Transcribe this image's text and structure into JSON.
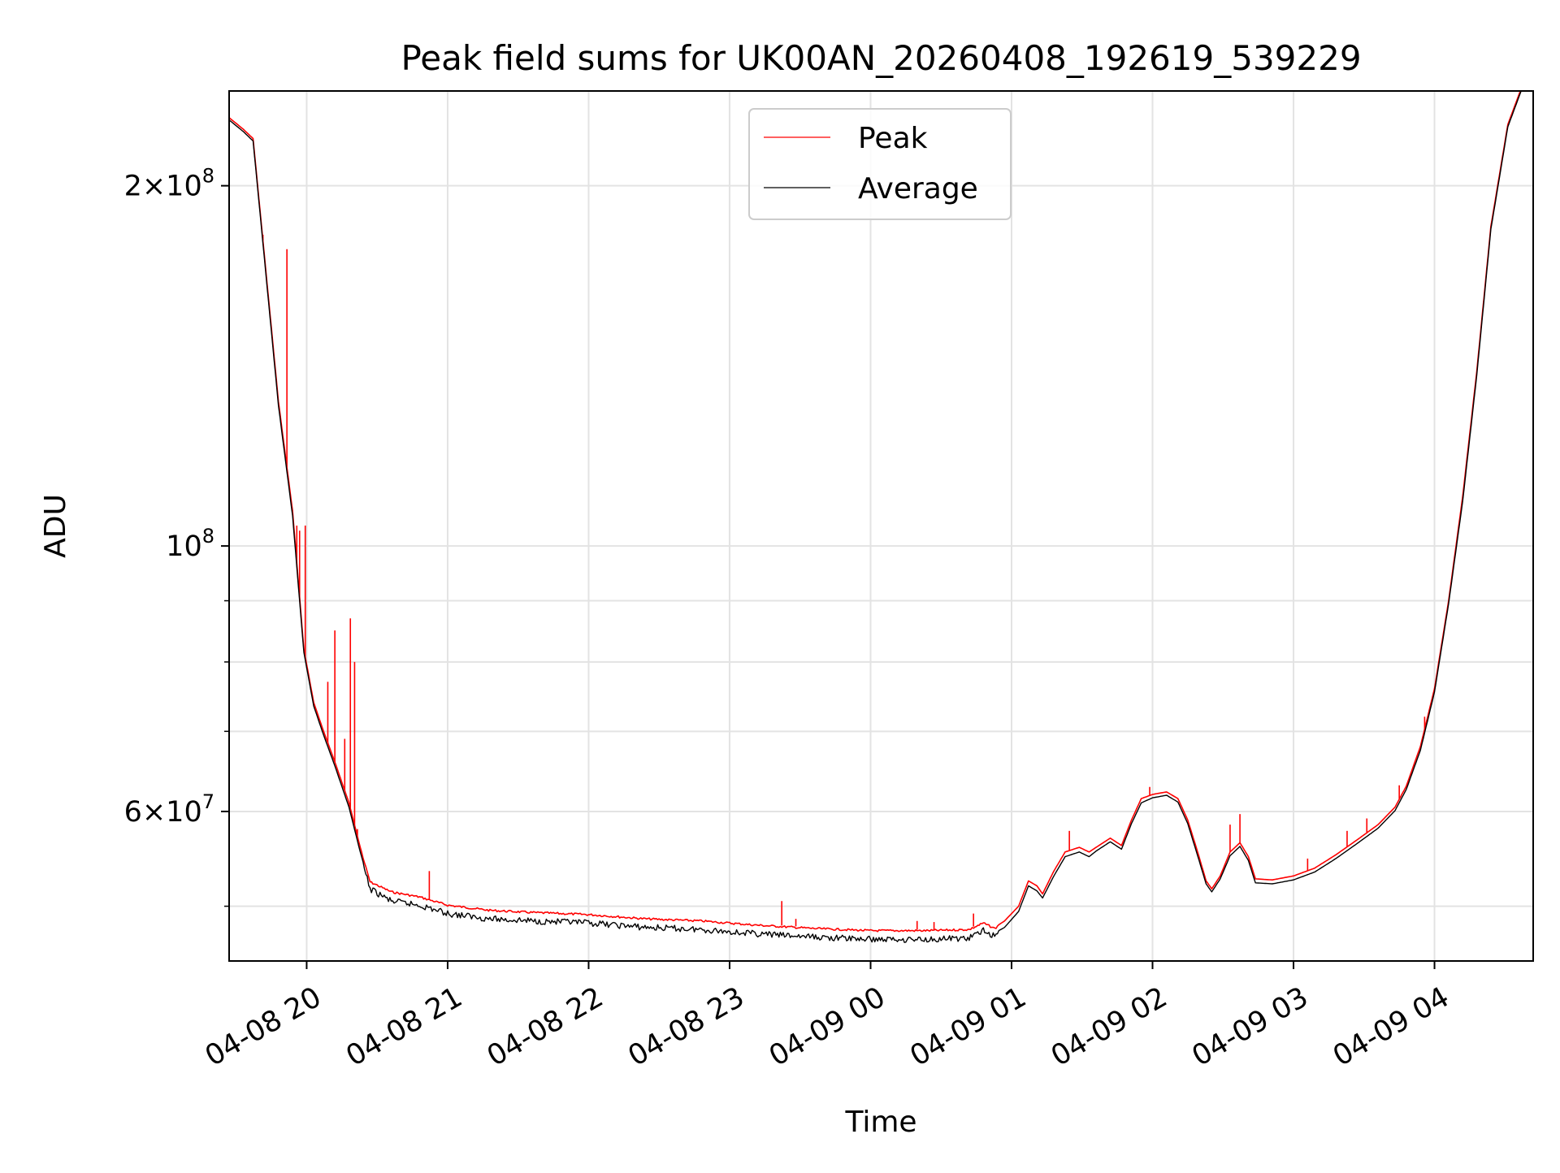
{
  "chart_data": {
    "type": "line",
    "title": "Peak field sums for UK00AN_20260408_192619_539229",
    "xlabel": "Time",
    "ylabel": "ADU",
    "yscale": "log",
    "grid": true,
    "legend_position": "top-center",
    "xlim_hours": [
      -0.55,
      8.7
    ],
    "ylim": [
      45000000,
      240000000
    ],
    "x_units": "hours since 04-08 20:00",
    "x_ticks": [
      {
        "hour": 0,
        "label": "04-08 20"
      },
      {
        "hour": 1,
        "label": "04-08 21"
      },
      {
        "hour": 2,
        "label": "04-08 22"
      },
      {
        "hour": 3,
        "label": "04-08 23"
      },
      {
        "hour": 4,
        "label": "04-09 00"
      },
      {
        "hour": 5,
        "label": "04-09 01"
      },
      {
        "hour": 6,
        "label": "04-09 02"
      },
      {
        "hour": 7,
        "label": "04-09 03"
      },
      {
        "hour": 8,
        "label": "04-09 04"
      }
    ],
    "y_ticks": [
      {
        "value": 200000000,
        "mant": "2",
        "exp": "8"
      },
      {
        "value": 100000000,
        "mant": "",
        "exp": "8"
      },
      {
        "value": 60000000,
        "mant": "6",
        "exp": "7"
      }
    ],
    "y_minor_ticks": [
      50000000,
      70000000,
      80000000,
      90000000
    ],
    "series": [
      {
        "name": "Peak",
        "color": "#ff0000",
        "points": [
          [
            -0.55,
            228000000
          ],
          [
            -0.45,
            223000000
          ],
          [
            -0.38,
            219000000
          ],
          [
            -0.3,
            175000000
          ],
          [
            -0.2,
            132000000
          ],
          [
            -0.1,
            107000000
          ],
          [
            -0.02,
            82000000
          ],
          [
            0.05,
            74000000
          ],
          [
            0.12,
            70000000
          ],
          [
            0.2,
            66000000
          ],
          [
            0.3,
            61000000
          ],
          [
            0.38,
            56000000
          ],
          [
            0.45,
            52500000
          ],
          [
            0.6,
            51500000
          ],
          [
            0.8,
            51000000
          ],
          [
            1.0,
            50200000
          ],
          [
            1.3,
            49700000
          ],
          [
            1.6,
            49500000
          ],
          [
            2.0,
            49300000
          ],
          [
            2.4,
            48900000
          ],
          [
            2.8,
            48700000
          ],
          [
            3.2,
            48300000
          ],
          [
            3.6,
            48000000
          ],
          [
            4.0,
            47800000
          ],
          [
            4.4,
            47800000
          ],
          [
            4.7,
            47900000
          ],
          [
            4.8,
            48500000
          ],
          [
            4.88,
            48000000
          ],
          [
            4.95,
            48600000
          ],
          [
            5.05,
            50000000
          ],
          [
            5.12,
            52500000
          ],
          [
            5.18,
            52000000
          ],
          [
            5.22,
            51200000
          ],
          [
            5.3,
            53500000
          ],
          [
            5.38,
            55500000
          ],
          [
            5.48,
            56000000
          ],
          [
            5.55,
            55500000
          ],
          [
            5.6,
            56000000
          ],
          [
            5.7,
            57000000
          ],
          [
            5.78,
            56200000
          ],
          [
            5.85,
            59000000
          ],
          [
            5.92,
            61500000
          ],
          [
            6.0,
            62000000
          ],
          [
            6.1,
            62300000
          ],
          [
            6.18,
            61500000
          ],
          [
            6.25,
            59000000
          ],
          [
            6.32,
            55500000
          ],
          [
            6.38,
            52500000
          ],
          [
            6.42,
            51700000
          ],
          [
            6.48,
            53000000
          ],
          [
            6.55,
            55500000
          ],
          [
            6.62,
            56500000
          ],
          [
            6.68,
            55000000
          ],
          [
            6.73,
            52700000
          ],
          [
            6.85,
            52600000
          ],
          [
            7.0,
            53000000
          ],
          [
            7.15,
            53800000
          ],
          [
            7.3,
            55200000
          ],
          [
            7.45,
            56800000
          ],
          [
            7.6,
            58500000
          ],
          [
            7.72,
            60500000
          ],
          [
            7.8,
            63000000
          ],
          [
            7.9,
            68000000
          ],
          [
            8.0,
            76000000
          ],
          [
            8.1,
            90000000
          ],
          [
            8.2,
            110000000
          ],
          [
            8.3,
            140000000
          ],
          [
            8.4,
            185000000
          ],
          [
            8.52,
            225000000
          ],
          [
            8.62,
            242000000
          ]
        ],
        "spikes": [
          [
            -0.31,
            182000000
          ],
          [
            -0.14,
            177000000
          ],
          [
            -0.07,
            104000000
          ],
          [
            -0.05,
            103000000
          ],
          [
            -0.01,
            104000000
          ],
          [
            0.15,
            77000000
          ],
          [
            0.2,
            85000000
          ],
          [
            0.27,
            69000000
          ],
          [
            0.31,
            87000000
          ],
          [
            0.34,
            80000000
          ],
          [
            0.36,
            58000000
          ],
          [
            0.87,
            53500000
          ],
          [
            3.37,
            50500000
          ],
          [
            3.47,
            48800000
          ],
          [
            4.33,
            48600000
          ],
          [
            4.45,
            48500000
          ],
          [
            4.73,
            49300000
          ],
          [
            5.41,
            57800000
          ],
          [
            5.98,
            62900000
          ],
          [
            6.55,
            58500000
          ],
          [
            6.62,
            59700000
          ],
          [
            7.1,
            54800000
          ],
          [
            7.38,
            57800000
          ],
          [
            7.52,
            59200000
          ],
          [
            7.75,
            63100000
          ],
          [
            7.93,
            72000000
          ]
        ]
      },
      {
        "name": "Average",
        "color": "#000000",
        "points": [
          [
            -0.55,
            227000000
          ],
          [
            -0.45,
            222000000
          ],
          [
            -0.38,
            218000000
          ],
          [
            -0.3,
            174000000
          ],
          [
            -0.2,
            131000000
          ],
          [
            -0.1,
            106000000
          ],
          [
            -0.02,
            81500000
          ],
          [
            0.05,
            73500000
          ],
          [
            0.12,
            69500000
          ],
          [
            0.2,
            65500000
          ],
          [
            0.3,
            60500000
          ],
          [
            0.38,
            55500000
          ],
          [
            0.45,
            52000000
          ],
          [
            0.6,
            50800000
          ],
          [
            0.8,
            50400000
          ],
          [
            1.0,
            49600000
          ],
          [
            1.3,
            49100000
          ],
          [
            1.6,
            48900000
          ],
          [
            2.0,
            48700000
          ],
          [
            2.4,
            48300000
          ],
          [
            2.8,
            48100000
          ],
          [
            3.2,
            47700000
          ],
          [
            3.6,
            47400000
          ],
          [
            4.0,
            47200000
          ],
          [
            4.4,
            47200000
          ],
          [
            4.7,
            47300000
          ],
          [
            4.8,
            48000000
          ],
          [
            4.88,
            47500000
          ],
          [
            4.95,
            48000000
          ],
          [
            5.05,
            49500000
          ],
          [
            5.12,
            52000000
          ],
          [
            5.18,
            51500000
          ],
          [
            5.22,
            50800000
          ],
          [
            5.3,
            53000000
          ],
          [
            5.38,
            55000000
          ],
          [
            5.48,
            55500000
          ],
          [
            5.55,
            55000000
          ],
          [
            5.6,
            55600000
          ],
          [
            5.7,
            56600000
          ],
          [
            5.78,
            55800000
          ],
          [
            5.85,
            58600000
          ],
          [
            5.92,
            61000000
          ],
          [
            6.0,
            61600000
          ],
          [
            6.1,
            61900000
          ],
          [
            6.18,
            61100000
          ],
          [
            6.25,
            58600000
          ],
          [
            6.32,
            55100000
          ],
          [
            6.38,
            52200000
          ],
          [
            6.42,
            51400000
          ],
          [
            6.48,
            52700000
          ],
          [
            6.55,
            55100000
          ],
          [
            6.62,
            56100000
          ],
          [
            6.68,
            54600000
          ],
          [
            6.73,
            52300000
          ],
          [
            6.85,
            52200000
          ],
          [
            7.0,
            52600000
          ],
          [
            7.15,
            53400000
          ],
          [
            7.3,
            54800000
          ],
          [
            7.45,
            56400000
          ],
          [
            7.6,
            58100000
          ],
          [
            7.72,
            60100000
          ],
          [
            7.8,
            62600000
          ],
          [
            7.9,
            67500000
          ],
          [
            8.0,
            75500000
          ],
          [
            8.1,
            89500000
          ],
          [
            8.2,
            109000000
          ],
          [
            8.3,
            139000000
          ],
          [
            8.4,
            184000000
          ],
          [
            8.52,
            224000000
          ],
          [
            8.62,
            241000000
          ]
        ]
      }
    ]
  }
}
